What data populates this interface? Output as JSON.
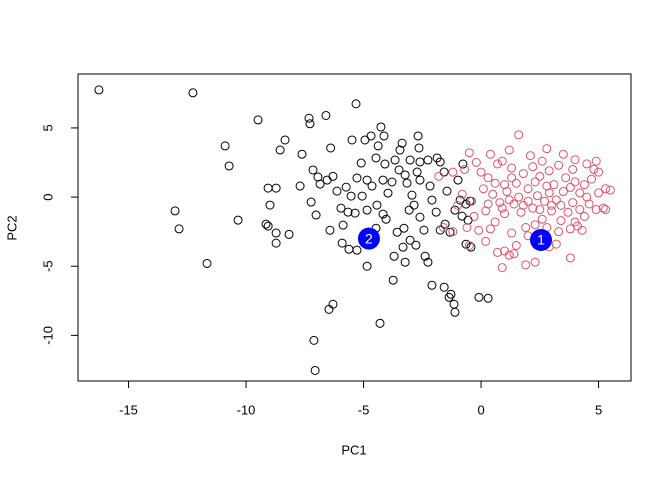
{
  "chart_data": {
    "type": "scatter",
    "xlabel": "PC1",
    "ylabel": "PC2",
    "xlim": [
      -17.15,
      6.38
    ],
    "ylim": [
      -13.3,
      8.9
    ],
    "xticks": [
      -15,
      -10,
      -5,
      0,
      5
    ],
    "yticks": [
      -10,
      -5,
      0,
      5
    ],
    "series": [
      {
        "color": "#000000",
        "x": [
          -16.26,
          -12.26,
          -9.49,
          -10.89,
          -10.72,
          -13.02,
          -12.85,
          -11.66,
          -10.34,
          -9.15,
          -9.06,
          -9.06,
          -8.72,
          -8.98,
          -8.72,
          -8.17,
          -8.72,
          -8.55,
          -8.34,
          -7.62,
          -7.7,
          -7.32,
          -7.28,
          -6.6,
          -6.4,
          -7.15,
          -6.94,
          -6.85,
          -7.23,
          -7.02,
          -6.55,
          -6.3,
          -6.13,
          -5.96,
          -5.74,
          -5.87,
          -6.43,
          -5.91,
          -5.32,
          -5.49,
          -5.1,
          -5.28,
          -5.53,
          -5.06,
          -4.85,
          -4.64,
          -5.36,
          -5.66,
          -4.85,
          -4.43,
          -4.47,
          -4.17,
          -4.04,
          -4.77,
          -5.28,
          -5.62,
          -4.85,
          -4.94,
          -4.68,
          -4.26,
          -4.13,
          -4.38,
          -4.47,
          -4.09,
          -4.17,
          -3.79,
          -3.96,
          -3.66,
          -3.49,
          -3.45,
          -3.36,
          -3.23,
          -3.15,
          -3.02,
          -2.94,
          -2.68,
          -2.64,
          -2.6,
          -2.72,
          -2.6,
          -3.06,
          -2.85,
          -2.6,
          -2.43,
          -3.28,
          -3.57,
          -3.02,
          -3.32,
          -2.77,
          -3.7,
          -3.23,
          -3.74,
          -2.38,
          -2.26,
          -2.09,
          -1.57,
          -1.28,
          -1.15,
          -1.11,
          -1.36,
          -4.3,
          -6.3,
          -6.47,
          -7.11,
          -7.06,
          -0.09,
          0.3,
          -2.17,
          -2.09,
          -1.91,
          -1.74,
          -1.57,
          -1.45,
          -1.53,
          -1.74,
          -1.32,
          -1.11,
          -0.98,
          -0.89,
          -0.81,
          -0.64,
          -0.47,
          -0.55,
          -0.43,
          -0.64,
          -0.77,
          -1.87,
          -2.26
        ],
        "values": [
          7.75,
          7.54,
          5.58,
          3.7,
          2.25,
          -1.0,
          -2.3,
          -4.8,
          -1.67,
          -1.96,
          -2.1,
          0.65,
          0.65,
          -0.58,
          -2.6,
          -2.7,
          -3.33,
          3.4,
          4.13,
          3.1,
          0.8,
          5.7,
          5.3,
          5.9,
          3.55,
          1.96,
          1.45,
          0.94,
          -0.36,
          -1.3,
          1.23,
          1.5,
          0.43,
          -0.8,
          0.72,
          -2.03,
          -2.4,
          -3.33,
          6.74,
          4.13,
          2.46,
          1.38,
          0.07,
          0.07,
          1.23,
          0.8,
          -1.16,
          -1.09,
          -0.94,
          -0.58,
          -2.25,
          -1.23,
          -1.6,
          -2.54,
          -3.84,
          -3.77,
          -5.0,
          4.13,
          4.42,
          5.07,
          4.42,
          3.7,
          2.83,
          2.39,
          1.23,
          1.09,
          0.29,
          2.68,
          1.96,
          3.4,
          3.9,
          1.6,
          1.01,
          2.68,
          0.14,
          4.42,
          3.55,
          2.54,
          1.81,
          1.23,
          -0.94,
          -0.58,
          -1.45,
          -2.39,
          -2.25,
          -2.54,
          -3.12,
          -3.62,
          -3.48,
          -4.28,
          -4.71,
          -6.01,
          -4.28,
          -4.71,
          -6.38,
          -6.52,
          -7.03,
          -7.75,
          -8.33,
          -7.25,
          -9.13,
          -7.75,
          -8.12,
          -10.36,
          -12.54,
          -7.25,
          -7.32,
          0.8,
          -0.22,
          -1.09,
          2.54,
          1.81,
          0.43,
          -1.96,
          -2.39,
          -2.54,
          -0.94,
          1.23,
          -0.22,
          -1.38,
          -0.51,
          -0.29,
          -1.67,
          -3.62,
          -3.41,
          2.39,
          2.83,
          2.68
        ]
      },
      {
        "color": "#DF536B",
        "x": [
          1.2,
          1.6,
          0.9,
          2.1,
          2.8,
          3.5,
          4.0,
          4.5,
          4.8,
          5.3,
          5.5,
          5.0,
          4.6,
          4.9,
          5.2,
          4.4,
          4.1,
          3.8,
          3.3,
          2.9,
          2.5,
          2.0,
          1.5,
          1.0,
          0.7,
          1.2,
          1.9,
          2.3,
          3.8,
          3.2,
          0.4,
          -0.1,
          -0.6,
          -1.2,
          -1.6,
          -1.8,
          -1.2,
          -0.7,
          0.0,
          0.3,
          0.1,
          0.5,
          0.8,
          0.2,
          -0.3,
          0.6,
          1.0,
          1.4,
          1.1,
          1.5,
          1.8,
          2.2,
          2.5,
          2.0,
          2.4,
          2.7,
          2.2,
          1.7,
          2.6,
          3.0,
          3.2,
          3.5,
          3.1,
          3.6,
          4.0,
          4.2,
          3.9,
          3.7,
          4.4,
          4.7,
          2.9,
          3.3,
          3.9,
          2.6,
          1.3,
          0.7,
          0.4,
          -0.5,
          -0.2,
          1.9,
          1.3,
          2.3,
          2.8,
          3.4,
          4.0,
          4.3,
          1.6,
          2.0,
          2.9,
          3.4,
          1.0,
          0.6,
          1.3,
          2.3,
          2.8,
          3.8,
          4.5,
          4.2,
          3.0,
          2.5,
          1.8,
          1.2,
          0.9,
          0.3,
          -0.4,
          -0.8,
          -1.0,
          -0.5,
          0.2,
          0.9,
          1.4,
          5.0,
          5.3,
          4.9
        ],
        "values": [
          3.4,
          4.5,
          2.6,
          3.0,
          3.5,
          3.1,
          2.7,
          2.4,
          2.0,
          0.6,
          0.5,
          0.3,
          -0.5,
          -0.9,
          -0.8,
          -1.4,
          -2.1,
          -2.3,
          -2.5,
          -3.6,
          -3.3,
          -2.8,
          -3.5,
          -3.9,
          -4.0,
          -4.2,
          -4.9,
          -4.7,
          -4.4,
          -3.4,
          -2.3,
          -2.4,
          -2.2,
          -2.5,
          -2.2,
          1.5,
          1.8,
          2.0,
          1.8,
          1.4,
          0.6,
          0.2,
          -0.4,
          -1.0,
          -1.4,
          -1.8,
          -1.2,
          -0.5,
          0.4,
          1.0,
          1.7,
          2.2,
          1.5,
          0.6,
          0.1,
          -0.3,
          -0.8,
          -1.1,
          -1.6,
          -1.0,
          -0.2,
          0.4,
          0.9,
          1.4,
          1.1,
          0.3,
          -0.4,
          -1.1,
          0.9,
          1.3,
          1.9,
          2.3,
          2.0,
          2.6,
          2.1,
          2.4,
          3.1,
          3.2,
          2.5,
          -2.2,
          -2.6,
          -2.0,
          -2.2,
          -1.7,
          -1.8,
          -2.4,
          0.0,
          -0.3,
          0.3,
          -0.6,
          0.9,
          1.0,
          1.4,
          1.1,
          0.8,
          0.7,
          0.0,
          -0.9,
          -0.6,
          -0.9,
          -0.6,
          -0.2,
          -0.8,
          -0.5,
          -0.3,
          0.2,
          -0.6,
          -3.5,
          -3.2,
          -5.1,
          -4.1,
          1.8,
          -0.9,
          2.6
        ]
      }
    ],
    "centers": {
      "color": "#0000FF",
      "x": [
        2.55,
        -4.77
      ],
      "values": [
        -3.1,
        -3.0
      ],
      "labels": [
        "1",
        "2"
      ]
    }
  }
}
